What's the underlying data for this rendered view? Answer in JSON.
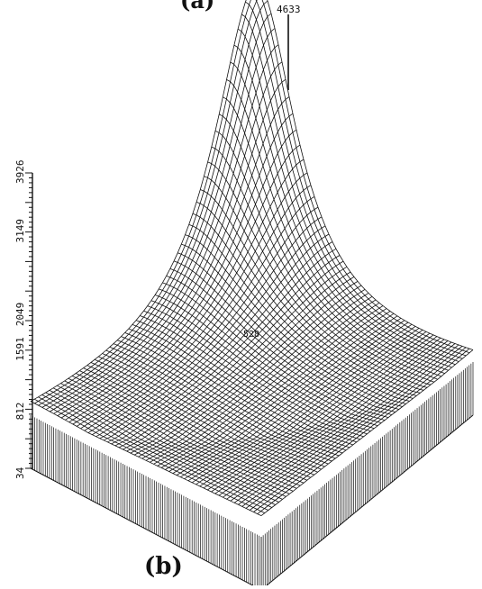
{
  "panel_labels": {
    "top": "(a)",
    "bottom": "(b)"
  },
  "chart_data": {
    "type": "surface",
    "title": "",
    "panel_label": "(b)",
    "z_axis": {
      "ticks": [
        "34",
        "812",
        "1591",
        "2049",
        "3149",
        "3926"
      ],
      "tick_values": [
        34,
        812,
        1591,
        2049,
        3149,
        3926
      ],
      "range": [
        34,
        3926
      ]
    },
    "peak_label": "4633",
    "peak_value": 4633,
    "inner_label": "528",
    "z_max": 4633,
    "colors": {
      "ink": "#111111",
      "paper": "#ffffff"
    }
  }
}
